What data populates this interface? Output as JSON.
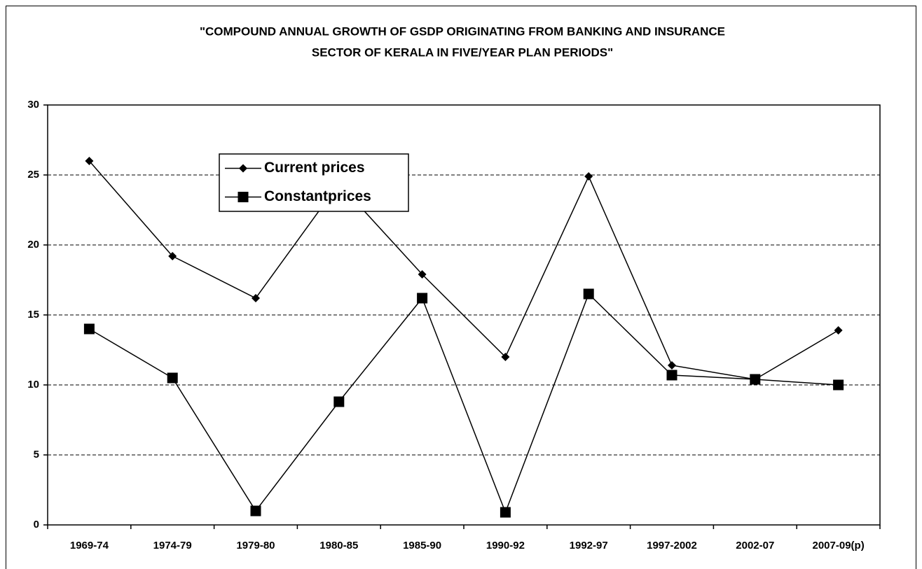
{
  "chart_data": {
    "type": "line",
    "title": [
      "\"COMPOUND ANNUAL GROWTH OF GSDP ORIGINATING FROM BANKING AND INSURANCE",
      "SECTOR OF KERALA IN FIVE/YEAR PLAN PERIODS\""
    ],
    "categories": [
      "1969-74",
      "1974-79",
      "1979-80",
      "1980-85",
      "1985-90",
      "1990-92",
      "1992-97",
      "1997-2002",
      "2002-07",
      "2007-09(p)"
    ],
    "series": [
      {
        "name": "Current prices",
        "color": "#000000",
        "marker": "diamond",
        "values": [
          26,
          19.2,
          16.2,
          24.4,
          17.9,
          12,
          24.9,
          11.4,
          10.4,
          13.9
        ]
      },
      {
        "name": "Constantprices",
        "color": "#000000",
        "marker": "square",
        "values": [
          14,
          10.5,
          1,
          8.8,
          16.2,
          0.9,
          16.5,
          10.7,
          10.4,
          10
        ]
      }
    ],
    "ylim": [
      0,
      30
    ],
    "yticks": [
      0,
      5,
      10,
      15,
      20,
      25,
      30
    ],
    "grid": true
  }
}
